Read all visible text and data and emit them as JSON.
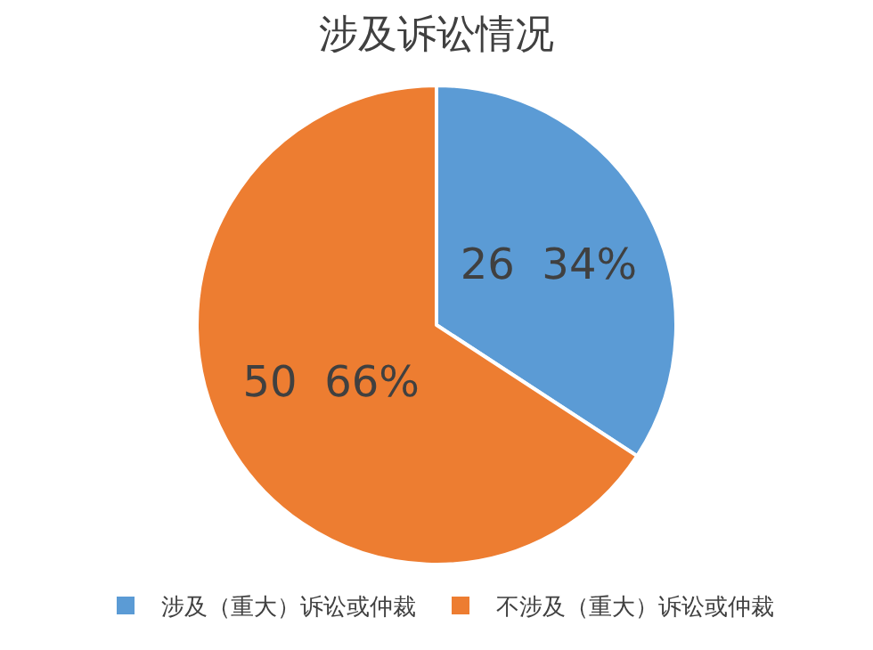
{
  "chart_data": {
    "type": "pie",
    "title": "涉及诉讼情况",
    "categories": [
      "涉及（重大）诉讼或仲裁",
      "不涉及（重大）诉讼或仲裁"
    ],
    "values": [
      26,
      50
    ],
    "colors": [
      "#5b9bd5",
      "#ed7d31"
    ],
    "value_labels": [
      "26  34%",
      "50  66%"
    ],
    "legend": "bottom"
  }
}
